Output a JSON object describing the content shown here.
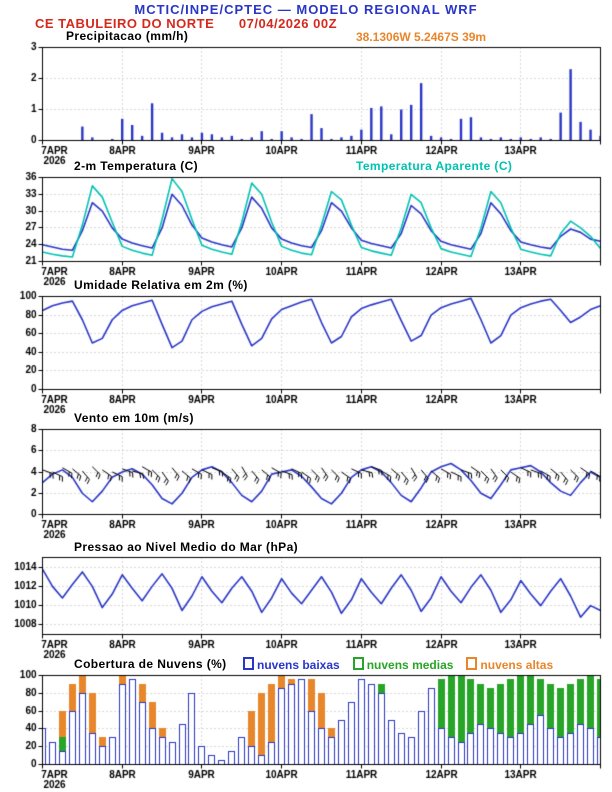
{
  "header": {
    "line1": "MCTIC/INPE/CPTEC — MODELO REGIONAL WRF",
    "line2": "CE TABULEIRO DO NORTE      07/04/2026 00Z",
    "location": "38.1306W 5.2467S 39m"
  },
  "colors": {
    "blue": "#2936c6",
    "red": "#d42a1e",
    "orange": "#e8862c",
    "cyan": "#00c2b2",
    "green": "#28a428",
    "grid": "#b5b5b5",
    "axis": "#000000"
  },
  "time_axis": {
    "labels": [
      "7APR",
      "8APR",
      "9APR",
      "10APR",
      "11APR",
      "12APR",
      "13APR"
    ],
    "year": "2026",
    "total_hours": 168,
    "step_hours": 3
  },
  "chart_data": [
    {
      "id": "precip",
      "type": "bar",
      "title": "Precipitacao (mm/h)",
      "ylim": [
        0,
        3
      ],
      "yticks": [
        0,
        1,
        2,
        3
      ],
      "color": "#2936c6",
      "values": [
        0,
        0,
        0,
        0,
        0.45,
        0.1,
        0,
        0.05,
        0.7,
        0.5,
        0.15,
        1.2,
        0.25,
        0.1,
        0.2,
        0.1,
        0.25,
        0.2,
        0.1,
        0.15,
        0.05,
        0.1,
        0.3,
        0.05,
        0.3,
        0.1,
        0.05,
        0.85,
        0.4,
        0.05,
        0.1,
        0.15,
        0.35,
        1.05,
        1.1,
        0.2,
        1.0,
        1.15,
        1.85,
        0.15,
        0.1,
        0.05,
        0.7,
        0.75,
        0.1,
        0.05,
        0.1,
        0.05,
        0.1,
        0.05,
        0.1,
        0.05,
        0.9,
        2.3,
        0.6,
        0.35,
        0.15
      ]
    },
    {
      "id": "temp",
      "type": "line",
      "title": "2-m Temperatura (C)",
      "ylim": [
        21,
        36
      ],
      "yticks": [
        21,
        24,
        27,
        30,
        33,
        36
      ],
      "series": [
        {
          "name": "2-m Temperatura (C)",
          "color": "#2936c6",
          "values": [
            24.0,
            23.6,
            23.2,
            23.0,
            26.5,
            31.5,
            30.0,
            27.0,
            25.0,
            24.3,
            23.8,
            23.4,
            27.0,
            33.0,
            31.0,
            27.5,
            25.2,
            24.5,
            24.0,
            23.6,
            27.0,
            32.5,
            30.5,
            27.0,
            25.0,
            24.3,
            23.8,
            23.5,
            26.5,
            31.5,
            30.0,
            27.0,
            24.8,
            24.2,
            23.8,
            23.4,
            26.0,
            31.0,
            29.5,
            26.5,
            24.6,
            24.0,
            23.6,
            23.2,
            26.0,
            31.5,
            29.5,
            26.5,
            24.5,
            24.0,
            23.6,
            23.3,
            25.5,
            26.8,
            26.2,
            25.0,
            24.6
          ]
        },
        {
          "name": "Temperatura Aparente (C)",
          "color": "#00c2b2",
          "values": [
            22.7,
            22.3,
            22.0,
            21.8,
            27.5,
            34.5,
            32.5,
            28.0,
            23.7,
            23.0,
            22.5,
            22.1,
            28.5,
            35.8,
            33.5,
            28.5,
            23.9,
            23.2,
            22.7,
            22.3,
            28.0,
            35.0,
            33.0,
            28.0,
            23.7,
            23.0,
            22.5,
            22.2,
            27.5,
            33.5,
            32.0,
            27.5,
            23.5,
            22.9,
            22.5,
            22.1,
            27.0,
            33.0,
            31.5,
            27.0,
            23.3,
            22.7,
            22.3,
            21.9,
            27.0,
            33.5,
            31.5,
            27.0,
            23.2,
            22.7,
            22.3,
            22.0,
            26.0,
            28.2,
            27.0,
            25.5,
            23.3
          ]
        }
      ]
    },
    {
      "id": "rh",
      "type": "line",
      "title": "Umidade Relativa em 2m (%)",
      "ylim": [
        0,
        100
      ],
      "yticks": [
        0,
        20,
        40,
        60,
        80,
        100
      ],
      "series": [
        {
          "name": "Umidade Relativa em 2m (%)",
          "color": "#2936c6",
          "values": [
            85,
            90,
            93,
            95,
            75,
            50,
            55,
            75,
            85,
            90,
            93,
            96,
            70,
            45,
            52,
            75,
            84,
            89,
            92,
            95,
            70,
            47,
            55,
            76,
            86,
            90,
            94,
            97,
            72,
            50,
            57,
            78,
            87,
            91,
            94,
            97,
            74,
            52,
            58,
            80,
            88,
            92,
            95,
            98,
            75,
            50,
            58,
            80,
            88,
            92,
            95,
            97,
            85,
            72,
            78,
            86,
            90
          ]
        }
      ]
    },
    {
      "id": "wind",
      "type": "line",
      "title": "Vento em 10m (m/s)",
      "ylim": [
        0,
        8
      ],
      "yticks": [
        0,
        2,
        4,
        6,
        8
      ],
      "series": [
        {
          "name": "Vento em 10m (m/s)",
          "color": "#2936c6",
          "values": [
            3.0,
            3.8,
            4.2,
            3.5,
            2.0,
            1.2,
            2.2,
            3.5,
            4.0,
            4.3,
            3.8,
            2.8,
            1.5,
            1.0,
            2.0,
            3.5,
            4.2,
            4.5,
            4.0,
            3.0,
            1.8,
            1.2,
            2.2,
            3.8,
            4.0,
            4.2,
            3.6,
            2.6,
            1.5,
            1.0,
            2.0,
            3.5,
            4.2,
            4.5,
            4.0,
            3.0,
            1.8,
            1.2,
            2.5,
            4.0,
            4.5,
            4.8,
            4.2,
            3.2,
            2.0,
            1.5,
            2.8,
            4.2,
            4.4,
            4.6,
            4.0,
            3.0,
            2.2,
            1.8,
            3.0,
            4.0,
            3.5
          ]
        }
      ],
      "barbs": {
        "color": "#000000",
        "speed_kt": 10,
        "y": [
          4.2,
          4.0,
          4.4,
          4.3,
          4.1,
          4.5,
          4.2,
          4.0,
          4.3,
          4.1,
          4.5,
          4.2,
          4.0,
          4.4,
          4.1,
          4.3,
          4.2,
          4.4,
          4.0,
          4.3,
          4.5,
          4.1,
          4.2,
          4.4,
          4.1,
          4.3,
          4.0,
          4.2,
          4.4,
          4.2,
          4.0,
          4.3,
          4.2,
          4.5,
          4.1,
          4.3,
          4.0,
          4.4,
          4.2,
          4.1,
          4.3,
          4.0,
          4.2,
          4.5,
          4.1,
          4.3,
          4.2,
          4.0,
          4.4,
          4.2,
          4.1,
          4.3,
          4.0,
          4.2,
          4.4,
          4.1,
          4.2
        ],
        "dir_deg": [
          110,
          115,
          120,
          130,
          140,
          135,
          125,
          115,
          110,
          105,
          120,
          135,
          145,
          140,
          130,
          120,
          115,
          110,
          125,
          140,
          150,
          140,
          130,
          120,
          110,
          115,
          125,
          135,
          145,
          135,
          125,
          115,
          105,
          110,
          120,
          130,
          140,
          150,
          140,
          130,
          120,
          115,
          110,
          125,
          135,
          145,
          135,
          125,
          115,
          110,
          120,
          130,
          140,
          135,
          125,
          120,
          115
        ]
      }
    },
    {
      "id": "pres",
      "type": "line",
      "title": "Pressao ao Nivel Medio do Mar (hPa)",
      "ylim": [
        1007,
        1015
      ],
      "yticks": [
        1008,
        1010,
        1012,
        1014
      ],
      "series": [
        {
          "name": "Pressao ao Nivel Medio do Mar (hPa)",
          "color": "#2936c6",
          "values": [
            1013.8,
            1012.0,
            1010.8,
            1012.2,
            1013.5,
            1012.0,
            1009.8,
            1011.2,
            1013.2,
            1011.8,
            1010.5,
            1012.0,
            1013.3,
            1011.8,
            1009.5,
            1011.0,
            1013.0,
            1011.5,
            1010.3,
            1011.8,
            1013.0,
            1011.5,
            1009.3,
            1010.8,
            1012.8,
            1011.3,
            1010.2,
            1011.6,
            1013.0,
            1011.4,
            1009.2,
            1010.6,
            1012.8,
            1011.4,
            1010.2,
            1011.8,
            1013.2,
            1011.6,
            1009.4,
            1010.8,
            1013.0,
            1011.5,
            1010.3,
            1011.9,
            1013.2,
            1011.6,
            1009.3,
            1010.6,
            1012.6,
            1011.2,
            1010.0,
            1011.5,
            1012.8,
            1011.0,
            1008.8,
            1010.0,
            1009.5
          ]
        }
      ]
    },
    {
      "id": "cloud",
      "type": "bar",
      "title": "Cobertura de Nuvens (%)",
      "ylim": [
        0,
        100
      ],
      "yticks": [
        0,
        20,
        40,
        60,
        80,
        100
      ],
      "series": [
        {
          "name": "nuvens baixas",
          "color": "#2936c6",
          "style": "outline",
          "values": [
            40,
            25,
            15,
            60,
            80,
            35,
            20,
            30,
            90,
            95,
            70,
            40,
            30,
            25,
            45,
            80,
            20,
            10,
            5,
            15,
            30,
            20,
            10,
            25,
            85,
            90,
            95,
            60,
            40,
            30,
            50,
            70,
            95,
            90,
            80,
            50,
            35,
            30,
            60,
            85,
            40,
            30,
            25,
            35,
            45,
            40,
            35,
            30,
            35,
            45,
            55,
            40,
            30,
            35,
            45,
            40,
            30
          ]
        },
        {
          "name": "nuvens medias",
          "color": "#28a428",
          "style": "solid",
          "values": [
            10,
            5,
            30,
            60,
            20,
            10,
            5,
            15,
            30,
            60,
            40,
            20,
            10,
            5,
            10,
            20,
            5,
            0,
            0,
            10,
            20,
            10,
            5,
            10,
            20,
            30,
            40,
            20,
            10,
            5,
            15,
            30,
            60,
            80,
            90,
            40,
            20,
            30,
            50,
            70,
            95,
            100,
            100,
            95,
            90,
            85,
            90,
            95,
            100,
            100,
            95,
            90,
            85,
            90,
            95,
            100,
            95
          ]
        },
        {
          "name": "nuvens altas",
          "color": "#e8862c",
          "style": "solid",
          "values": [
            20,
            10,
            60,
            90,
            100,
            80,
            30,
            20,
            100,
            95,
            90,
            70,
            40,
            20,
            30,
            60,
            10,
            5,
            0,
            5,
            30,
            60,
            80,
            90,
            100,
            95,
            90,
            95,
            80,
            40,
            30,
            50,
            60,
            30,
            20,
            40,
            30,
            20,
            30,
            40,
            20,
            10,
            5,
            10,
            15,
            10,
            5,
            10,
            5,
            10,
            15,
            10,
            5,
            10,
            15,
            10,
            5
          ]
        }
      ]
    }
  ]
}
